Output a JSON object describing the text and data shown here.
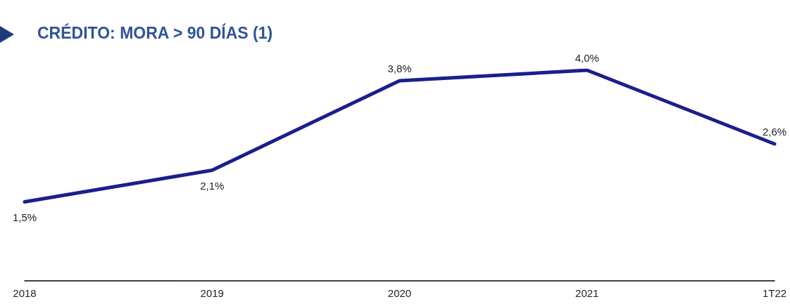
{
  "chart_data": {
    "type": "line",
    "title": "CRÉDITO: MORA > 90 DÍAS (1)",
    "categories": [
      "2018",
      "2019",
      "2020",
      "2021",
      "1T22"
    ],
    "series": [
      {
        "color": "#1a1f8c",
        "values": [
          1.5,
          2.1,
          3.8,
          4.0,
          2.6
        ],
        "value_labels": [
          "1,5%",
          "2,1%",
          "3,8%",
          "4,0%",
          "2,6%"
        ]
      }
    ],
    "grid": false,
    "marker": "none",
    "line_style": "solid"
  }
}
